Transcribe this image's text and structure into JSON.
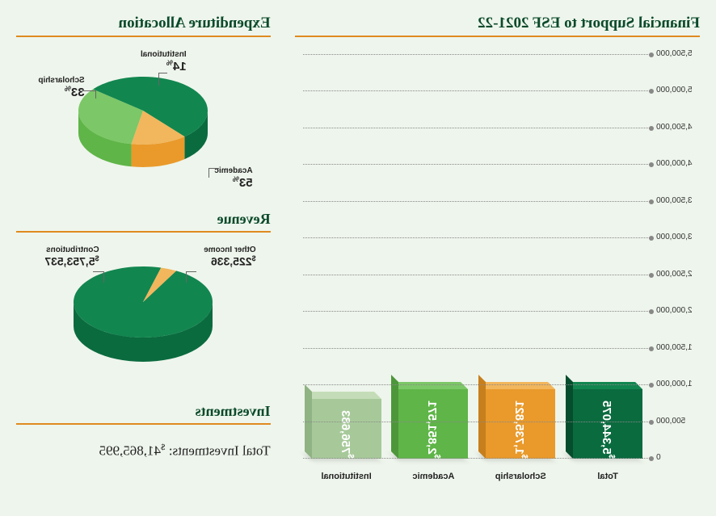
{
  "background_color": "#eef5ec",
  "accent_rule_color": "#e08a1f",
  "heading_color": "#0a4a2a",
  "bar_chart": {
    "title": "Financial Support to ESF 2021-22",
    "type": "bar",
    "ylim": [
      0,
      5500000
    ],
    "ytick_step": 500000,
    "ytick_labels": [
      "0",
      "500,000",
      "1,000,000",
      "1,500,000",
      "2,000,000",
      "2,500,000",
      "3,000,000",
      "3,500,000",
      "4,000,000",
      "4,500,000",
      "5,000,000",
      "5,500,000"
    ],
    "grid_color": "#888888",
    "bars": [
      {
        "label": "Institutional",
        "value": 756683,
        "value_display": "756,683",
        "front": "#a7c99a",
        "top": "#c4ddb8",
        "side": "#8fb383",
        "text": "#ffffff"
      },
      {
        "label": "Academic",
        "value": 2851571,
        "value_display": "2,851,571",
        "front": "#5fb548",
        "top": "#7cc767",
        "side": "#4d973a",
        "text": "#ffffff"
      },
      {
        "label": "Scholarship",
        "value": 1735821,
        "value_display": "1,735,821",
        "front": "#e99a2b",
        "top": "#f2b65c",
        "side": "#c77f1d",
        "text": "#ffffff"
      },
      {
        "label": "Total",
        "value": 5344075,
        "value_display": "5,344,075",
        "front": "#0a6b3f",
        "top": "#12864f",
        "side": "#064d2d",
        "text": "#ffffff"
      }
    ]
  },
  "expenditure_pie": {
    "title": "Expenditure Allocation",
    "type": "pie",
    "slices": [
      {
        "label": "Academic",
        "pct": 53,
        "pct_display": "53",
        "front": "#0a6b3f",
        "top": "#12864f"
      },
      {
        "label": "Scholarship",
        "pct": 33,
        "pct_display": "33",
        "front": "#5fb548",
        "top": "#7cc767"
      },
      {
        "label": "Institutional",
        "pct": 14,
        "pct_display": "14",
        "front": "#e99a2b",
        "top": "#f2b65c"
      }
    ]
  },
  "revenue_pie": {
    "title": "Revenue",
    "type": "pie",
    "slices": [
      {
        "label": "Contributions",
        "value": 5753537,
        "value_display": "5,753,537",
        "front": "#0a6b3f",
        "top": "#12864f"
      },
      {
        "label": "Other Income",
        "value": 225336,
        "value_display": "225,336",
        "front": "#e99a2b",
        "top": "#f2b65c"
      }
    ]
  },
  "investments": {
    "title": "Investments",
    "line_prefix": "Total Investments: ",
    "amount_display": "41,865,995"
  }
}
